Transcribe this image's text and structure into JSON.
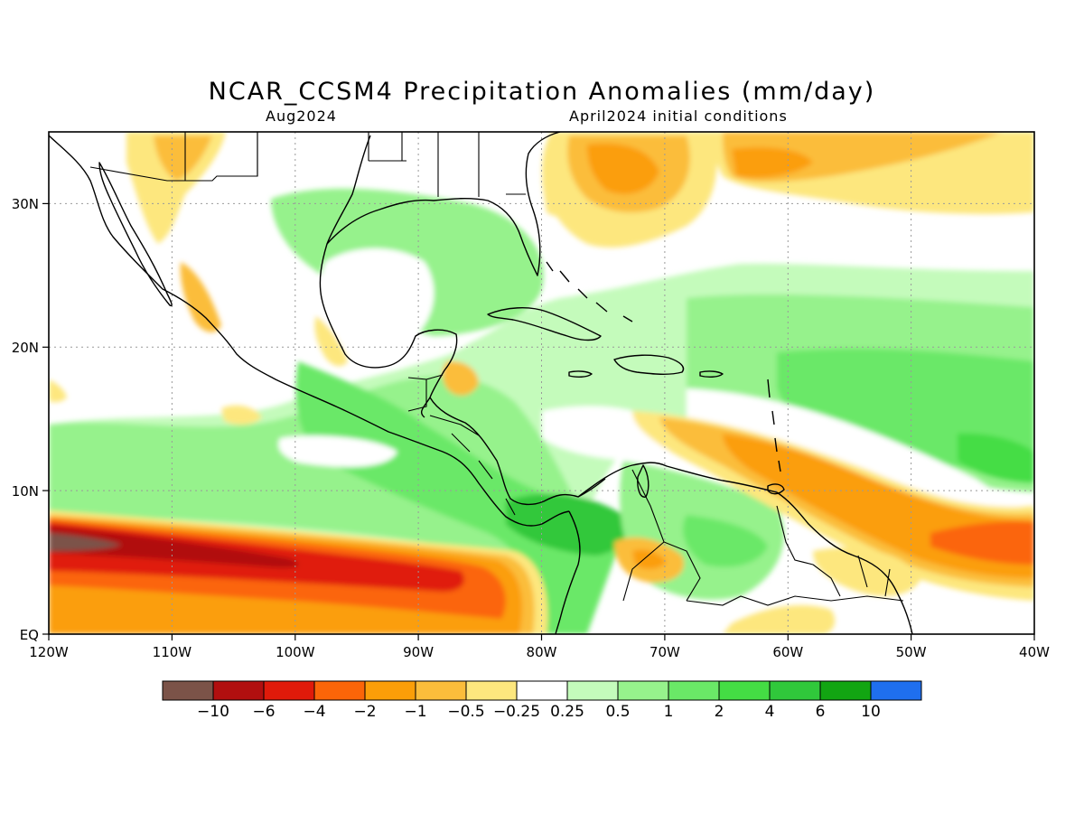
{
  "title": "NCAR_CCSM4 Precipitation Anomalies (mm/day)",
  "subtitle_left": "Aug2024",
  "subtitle_right": "April2024 initial conditions",
  "axes": {
    "x_labels": [
      "120W",
      "110W",
      "100W",
      "90W",
      "80W",
      "70W",
      "60W",
      "50W",
      "40W"
    ],
    "y_labels": [
      "EQ",
      "10N",
      "20N",
      "30N"
    ],
    "lon_range": [
      -120,
      -40
    ],
    "lat_range": [
      0,
      35
    ],
    "grid": "dotted"
  },
  "colorbar": {
    "labels": [
      "-10",
      "-6",
      "-4",
      "-2",
      "-1",
      "-0.5",
      "-0.25",
      "0.25",
      "0.5",
      "1",
      "2",
      "4",
      "6",
      "10"
    ],
    "colors": [
      "#7b5348",
      "#b10f0f",
      "#e01a0a",
      "#fb6508",
      "#fb9e08",
      "#fbbd3b",
      "#fde77e",
      "#ffffff",
      "#c4fbbb",
      "#96f28c",
      "#6ae867",
      "#44dd44",
      "#30c83b",
      "#12a512",
      "#1f6fef"
    ]
  },
  "colors": {
    "land_outline": "#000000",
    "grid": "#9a9a9a"
  }
}
